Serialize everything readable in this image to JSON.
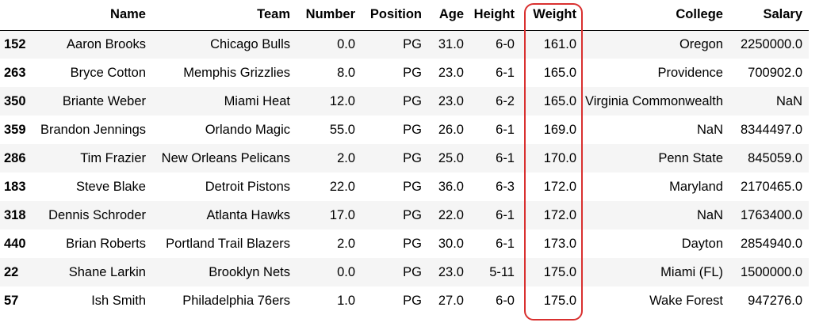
{
  "colors": {
    "highlight": "#d9302f",
    "stripe": "#f5f5f5"
  },
  "table": {
    "index_header": "",
    "headers": [
      "Name",
      "Team",
      "Number",
      "Position",
      "Age",
      "Height",
      "Weight",
      "College",
      "Salary"
    ],
    "highlighted_column": "Weight",
    "rows": [
      {
        "index": "152",
        "cells": [
          "Aaron Brooks",
          "Chicago Bulls",
          "0.0",
          "PG",
          "31.0",
          "6-0",
          "161.0",
          "Oregon",
          "2250000.0"
        ]
      },
      {
        "index": "263",
        "cells": [
          "Bryce Cotton",
          "Memphis Grizzlies",
          "8.0",
          "PG",
          "23.0",
          "6-1",
          "165.0",
          "Providence",
          "700902.0"
        ]
      },
      {
        "index": "350",
        "cells": [
          "Briante Weber",
          "Miami Heat",
          "12.0",
          "PG",
          "23.0",
          "6-2",
          "165.0",
          "Virginia Commonwealth",
          "NaN"
        ]
      },
      {
        "index": "359",
        "cells": [
          "Brandon Jennings",
          "Orlando Magic",
          "55.0",
          "PG",
          "26.0",
          "6-1",
          "169.0",
          "NaN",
          "8344497.0"
        ]
      },
      {
        "index": "286",
        "cells": [
          "Tim Frazier",
          "New Orleans Pelicans",
          "2.0",
          "PG",
          "25.0",
          "6-1",
          "170.0",
          "Penn State",
          "845059.0"
        ]
      },
      {
        "index": "183",
        "cells": [
          "Steve Blake",
          "Detroit Pistons",
          "22.0",
          "PG",
          "36.0",
          "6-3",
          "172.0",
          "Maryland",
          "2170465.0"
        ]
      },
      {
        "index": "318",
        "cells": [
          "Dennis Schroder",
          "Atlanta Hawks",
          "17.0",
          "PG",
          "22.0",
          "6-1",
          "172.0",
          "NaN",
          "1763400.0"
        ]
      },
      {
        "index": "440",
        "cells": [
          "Brian Roberts",
          "Portland Trail Blazers",
          "2.0",
          "PG",
          "30.0",
          "6-1",
          "173.0",
          "Dayton",
          "2854940.0"
        ]
      },
      {
        "index": "22",
        "cells": [
          "Shane Larkin",
          "Brooklyn Nets",
          "0.0",
          "PG",
          "23.0",
          "5-11",
          "175.0",
          "Miami (FL)",
          "1500000.0"
        ]
      },
      {
        "index": "57",
        "cells": [
          "Ish Smith",
          "Philadelphia 76ers",
          "1.0",
          "PG",
          "27.0",
          "6-0",
          "175.0",
          "Wake Forest",
          "947276.0"
        ]
      }
    ]
  }
}
